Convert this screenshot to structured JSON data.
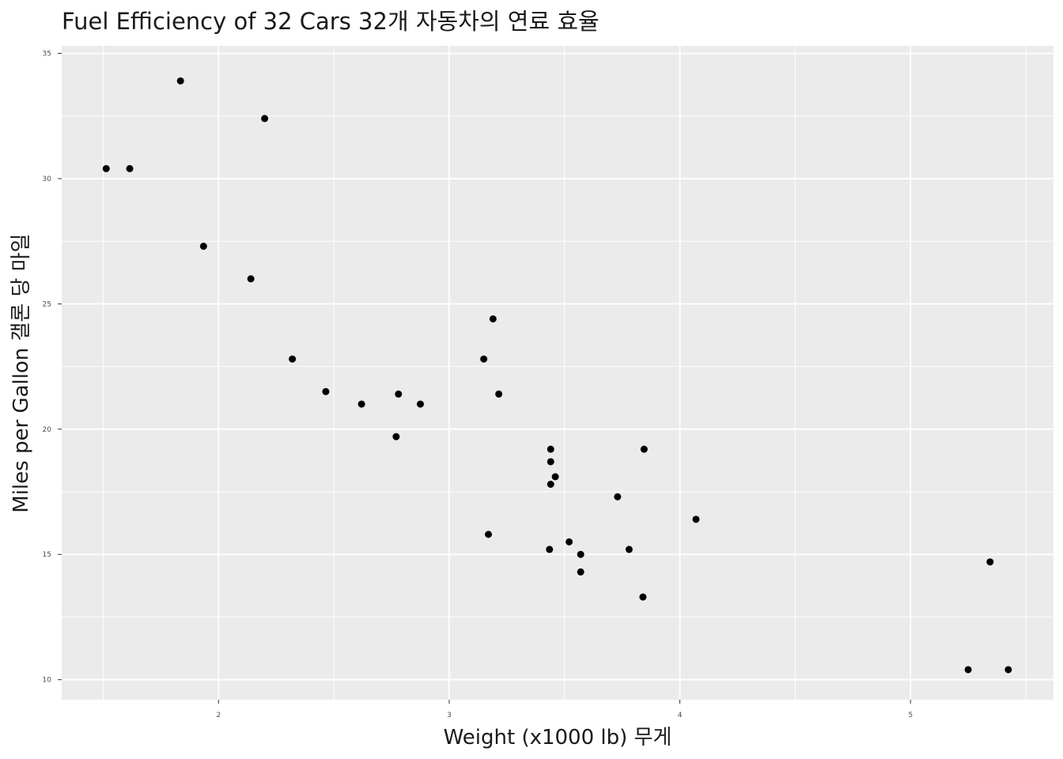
{
  "chart_data": {
    "type": "scatter",
    "title": "Fuel Efficiency of 32 Cars 32개 자동차의 연료 효율",
    "xlabel": "Weight (x1000 lb) 무게",
    "ylabel": "Miles per Gallon 갤론 당 마일",
    "xlim": [
      1.32,
      5.62
    ],
    "ylim": [
      9.2,
      35.3
    ],
    "x_ticks": [
      2,
      3,
      4,
      5
    ],
    "y_ticks": [
      10,
      15,
      20,
      25,
      30,
      35
    ],
    "grid": true,
    "colors": {
      "panel": "#ebebeb",
      "grid_major": "#ffffff",
      "points": "#000000"
    },
    "points": [
      {
        "x": 2.62,
        "y": 21.0
      },
      {
        "x": 2.875,
        "y": 21.0
      },
      {
        "x": 2.32,
        "y": 22.8
      },
      {
        "x": 3.215,
        "y": 21.4
      },
      {
        "x": 3.44,
        "y": 18.7
      },
      {
        "x": 3.46,
        "y": 18.1
      },
      {
        "x": 3.57,
        "y": 14.3
      },
      {
        "x": 3.19,
        "y": 24.4
      },
      {
        "x": 3.15,
        "y": 22.8
      },
      {
        "x": 3.44,
        "y": 19.2
      },
      {
        "x": 3.44,
        "y": 17.8
      },
      {
        "x": 4.07,
        "y": 16.4
      },
      {
        "x": 3.73,
        "y": 17.3
      },
      {
        "x": 3.78,
        "y": 15.2
      },
      {
        "x": 5.25,
        "y": 10.4
      },
      {
        "x": 5.424,
        "y": 10.4
      },
      {
        "x": 5.345,
        "y": 14.7
      },
      {
        "x": 2.2,
        "y": 32.4
      },
      {
        "x": 1.615,
        "y": 30.4
      },
      {
        "x": 1.835,
        "y": 33.9
      },
      {
        "x": 2.465,
        "y": 21.5
      },
      {
        "x": 3.52,
        "y": 15.5
      },
      {
        "x": 3.435,
        "y": 15.2
      },
      {
        "x": 3.84,
        "y": 13.3
      },
      {
        "x": 3.845,
        "y": 19.2
      },
      {
        "x": 1.935,
        "y": 27.3
      },
      {
        "x": 2.14,
        "y": 26.0
      },
      {
        "x": 1.513,
        "y": 30.4
      },
      {
        "x": 3.17,
        "y": 15.8
      },
      {
        "x": 2.77,
        "y": 19.7
      },
      {
        "x": 3.57,
        "y": 15.0
      },
      {
        "x": 2.78,
        "y": 21.4
      }
    ]
  }
}
